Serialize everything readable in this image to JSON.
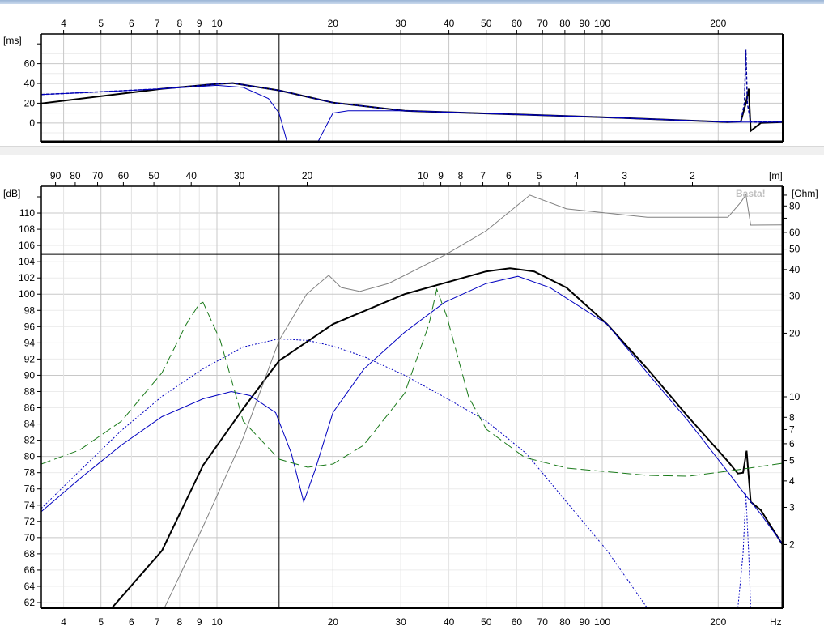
{
  "app": {
    "watermark": "Basta!"
  },
  "chart_data": [
    {
      "type": "line",
      "title": "",
      "ylabel": "[ms]",
      "xscale": "log",
      "xlim": [
        3.5,
        294
      ],
      "ylim": [
        -19,
        90
      ],
      "x_ticks": [
        4,
        5,
        6,
        7,
        8,
        9,
        10,
        20,
        30,
        40,
        50,
        60,
        70,
        80,
        90,
        100,
        200
      ],
      "y_ticks": [
        0,
        20,
        40,
        60
      ],
      "cursor_x": 14.5,
      "grid": true,
      "series": [
        {
          "style": "solid",
          "color": "#000000",
          "width": 2,
          "x": [
            3.5,
            7.2,
            10,
            11.0,
            14.5,
            20,
            30.7,
            100,
            212,
            229,
            236,
            240,
            243,
            258,
            294
          ],
          "y": [
            19.8,
            34.6,
            39.5,
            40.3,
            33,
            20.6,
            12.3,
            5.8,
            0.8,
            1.6,
            20,
            34.6,
            -8,
            0,
            0.8
          ]
        },
        {
          "style": "dashed",
          "color": "#0000a0",
          "width": 1.5,
          "x": [
            3.5,
            4.4,
            7.2,
            10,
            11.0,
            14.5,
            20,
            30.7,
            100,
            212,
            229,
            234,
            236,
            238,
            243,
            258,
            294
          ],
          "y": [
            28.8,
            30.5,
            34.6,
            39.5,
            40.3,
            33,
            20.6,
            12.3,
            5.8,
            0.8,
            1.5,
            20,
            74,
            20,
            1,
            0.8,
            0.8
          ]
        },
        {
          "style": "solid",
          "color": "#0000c0",
          "width": 1,
          "x": [
            3.5,
            4.4,
            7.2,
            10,
            11.7,
            13.6,
            14.5,
            15.2,
            18.3,
            20,
            21.9,
            30.7,
            100,
            212,
            294
          ],
          "y": [
            28.8,
            30.5,
            34.6,
            38,
            36,
            24.7,
            10,
            -19,
            -19,
            10,
            12.3,
            12.3,
            5.8,
            0.8,
            0.8
          ]
        }
      ]
    },
    {
      "type": "line",
      "title": "",
      "xlabel": "Hz",
      "ylabel": "[dB]",
      "y2label": "[Ohm]",
      "x2label": "[m]",
      "xscale": "log",
      "xlim": [
        3.5,
        294
      ],
      "ylim": [
        61.3,
        113.3
      ],
      "y2lim": [
        1,
        100
      ],
      "y2scale": "log",
      "x_ticks": [
        4,
        5,
        6,
        7,
        8,
        9,
        10,
        20,
        30,
        40,
        50,
        60,
        70,
        80,
        90,
        100,
        200
      ],
      "x2_ticks": [
        90,
        80,
        70,
        60,
        50,
        40,
        30,
        20,
        10,
        9,
        8,
        7,
        6,
        5,
        4,
        3,
        2
      ],
      "y_ticks": [
        62,
        64,
        66,
        68,
        70,
        72,
        74,
        76,
        78,
        80,
        82,
        84,
        86,
        88,
        90,
        92,
        94,
        96,
        98,
        100,
        102,
        104,
        106,
        108,
        110
      ],
      "y2_ticks": [
        2,
        3,
        4,
        5,
        6,
        7,
        8,
        10,
        20,
        30,
        40,
        50,
        60,
        80
      ],
      "cursor_x": 14.5,
      "cursor_y": 104.9,
      "grid": true,
      "series": [
        {
          "axis": "dB",
          "style": "solid",
          "color": "#000000",
          "width": 2,
          "x": [
            5.33,
            7.2,
            9.2,
            11.7,
            14.5,
            20,
            30.7,
            49.9,
            57.6,
            66.6,
            80.8,
            103,
            131,
            167,
            212,
            225,
            232,
            237,
            243,
            258,
            294
          ],
          "y": [
            61.3,
            68.4,
            78.9,
            85.9,
            91.8,
            96.3,
            100,
            102.8,
            103.2,
            102.8,
            100.8,
            96.3,
            90.8,
            84.9,
            79.4,
            77.9,
            78,
            80.7,
            74.4,
            73.4,
            69.1
          ]
        },
        {
          "axis": "dB",
          "style": "solid",
          "color": "#0000c0",
          "width": 1,
          "x": [
            3.5,
            4.44,
            5.65,
            7.2,
            9.2,
            10.9,
            12.2,
            14.2,
            15.6,
            16.8,
            18.0,
            20,
            24.1,
            30.7,
            39,
            49.9,
            60.4,
            73.2,
            103,
            131,
            167,
            212,
            234,
            258,
            294
          ],
          "y": [
            73.2,
            77.4,
            81.4,
            84.9,
            87.1,
            88,
            87.5,
            85.4,
            80.4,
            74.4,
            78.4,
            85.4,
            90.8,
            95.3,
            99,
            101.3,
            102.2,
            100.8,
            96.3,
            90.3,
            84.4,
            78.1,
            75.4,
            72.9,
            69.2
          ]
        },
        {
          "axis": "dB",
          "style": "dotted",
          "color": "#0000c0",
          "width": 1,
          "x": [
            3.5,
            4.44,
            5.65,
            7.2,
            9.2,
            11.7,
            14.5,
            17.2,
            20,
            24.1,
            30.7,
            39,
            49.9,
            63.4,
            80.8,
            103,
            131,
            225,
            232,
            236,
            240,
            243,
            294
          ],
          "y": [
            73.6,
            78.4,
            83.2,
            87.4,
            90.8,
            93.5,
            94.5,
            94.3,
            93.6,
            92.3,
            90,
            87.3,
            84.4,
            80.4,
            74.4,
            68.4,
            61.3,
            61.3,
            68,
            75.4,
            68,
            61.3,
            61.3
          ]
        },
        {
          "axis": "Ohm",
          "style": "longdash",
          "color": "#1a7a1a",
          "width": 1,
          "x": [
            3.5,
            4.4,
            5.65,
            7.2,
            8.32,
            9.0,
            9.2,
            10.2,
            11.7,
            14.5,
            17.2,
            20,
            24,
            30.7,
            35.5,
            37.2,
            39.5,
            45,
            50,
            63,
            81,
            131,
            167,
            212,
            294
          ],
          "y": [
            4.81,
            5.6,
            7.67,
            13,
            22,
            27.5,
            28,
            18.5,
            7.67,
            5.07,
            4.64,
            4.81,
            5.89,
            10.4,
            22,
            32.3,
            24,
            10,
            7.03,
            5.16,
            4.6,
            4.25,
            4.21,
            4.45,
            4.85
          ]
        },
        {
          "axis": "Ohm",
          "style": "solid",
          "color": "#808080",
          "width": 1,
          "x": [
            7.3,
            9.2,
            11.7,
            14.5,
            17.1,
            19.5,
            21,
            23.5,
            27.9,
            39,
            50,
            64.9,
            80.8,
            131,
            212,
            229,
            236,
            243,
            294
          ],
          "y": [
            1.0,
            2.43,
            6.4,
            18.5,
            30.6,
            37.6,
            32.9,
            31.5,
            34.4,
            46.8,
            61,
            90,
            77.5,
            70.7,
            70.7,
            83.3,
            90.7,
            64.9,
            65
          ]
        }
      ]
    }
  ]
}
